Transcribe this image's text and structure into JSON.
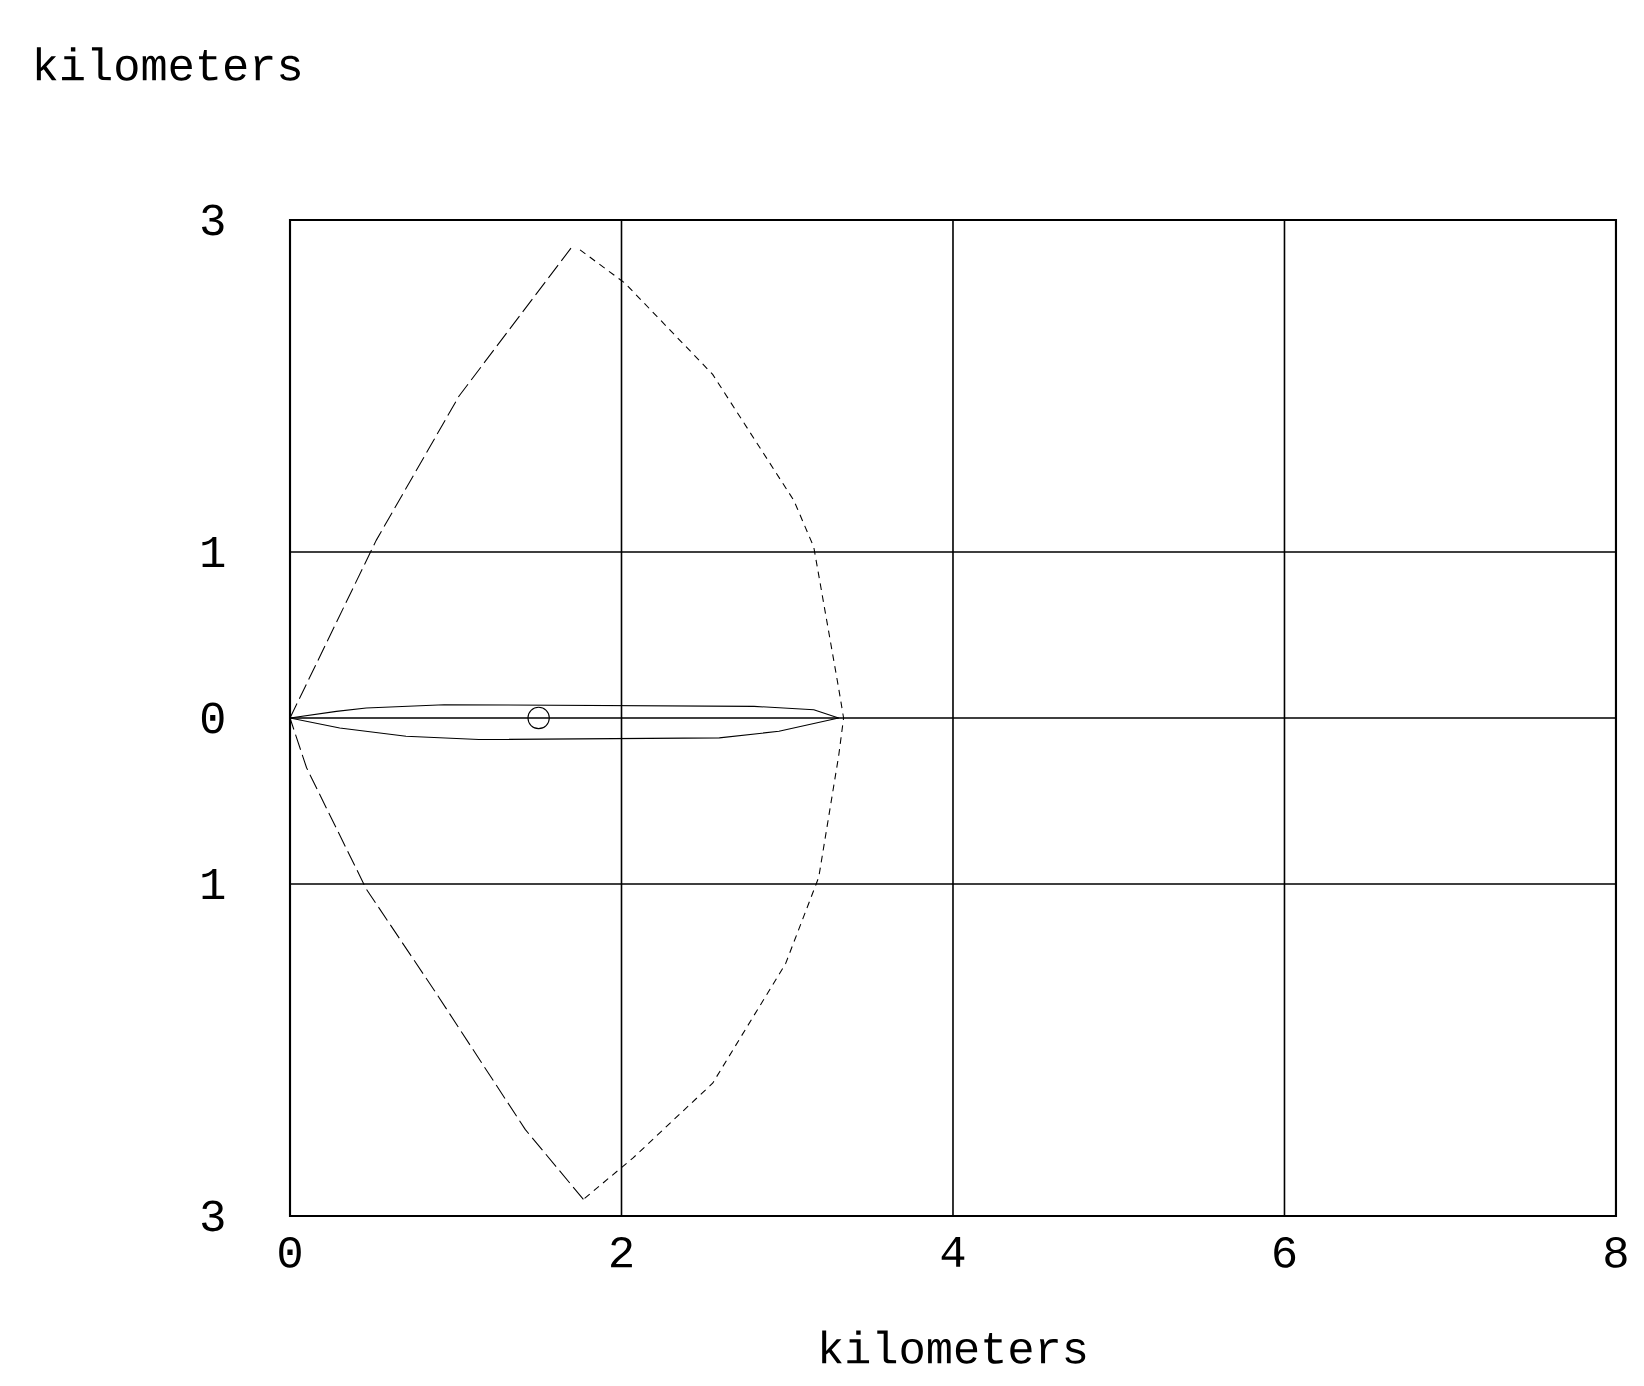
{
  "chart_data": {
    "type": "line",
    "xlabel": "kilometers",
    "ylabel": "kilometers",
    "xlim": [
      0,
      8
    ],
    "ylim": [
      -3,
      3
    ],
    "xticks": [
      0,
      2,
      4,
      6,
      8
    ],
    "yticks": [
      {
        "value": -3,
        "label": "3"
      },
      {
        "value": -1,
        "label": "1"
      },
      0,
      1,
      3
    ],
    "grid": true,
    "series": [
      {
        "color": "#000000",
        "line_style": "dashed",
        "x": [
          0,
          0.52,
          1.02,
          1.71
        ],
        "values": [
          0,
          1.07,
          1.94,
          2.85
        ]
      },
      {
        "color": "#000000",
        "line_style": "dotted",
        "x": [
          1.75,
          2.02,
          2.55,
          3.04,
          3.16,
          3.31,
          3.34,
          3.31,
          3.19,
          2.99,
          2.55,
          2.07,
          1.77
        ],
        "values": [
          2.82,
          2.62,
          2.07,
          1.31,
          1.03,
          0.18,
          0,
          -0.23,
          -0.96,
          -1.48,
          -2.2,
          -2.65,
          -2.9
        ]
      },
      {
        "color": "#000000",
        "line_style": "dashed",
        "x": [
          1.77,
          1.42,
          0.87,
          0.46,
          0.1,
          0
        ],
        "values": [
          -2.9,
          -2.48,
          -1.64,
          -1.03,
          -0.3,
          0
        ]
      },
      {
        "color": "#000000",
        "line_style": "solid",
        "x": [
          0,
          0.28,
          0.46,
          0.93,
          2.8,
          3.16,
          3.31
        ],
        "values": [
          0,
          0.04,
          0.06,
          0.08,
          0.07,
          0.05,
          0
        ]
      },
      {
        "color": "#000000",
        "line_style": "solid",
        "x": [
          0,
          0.3,
          0.7,
          1.14,
          2.59,
          2.95,
          3.31
        ],
        "values": [
          0,
          -0.06,
          -0.11,
          -0.13,
          -0.12,
          -0.08,
          0
        ]
      },
      {
        "color": "#000000",
        "type": "scatter",
        "marker": "circle",
        "x": [
          1.5
        ],
        "values": [
          0
        ]
      }
    ]
  }
}
